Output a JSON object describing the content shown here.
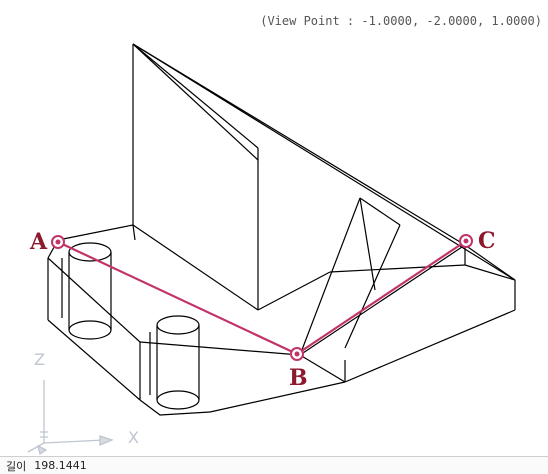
{
  "viewport": {
    "view_point_label": "(View Point : -1.0000, -2.0000, 1.0000)"
  },
  "points": {
    "a": "A",
    "b": "B",
    "c": "C"
  },
  "ucs_icon": {
    "z_label": "Z",
    "x_label": "X"
  },
  "status": {
    "length_label": "길이",
    "length_value": "198.1441"
  },
  "colors": {
    "wire": "#000000",
    "path_line": "#c2336a",
    "point_label": "#8b1a2e",
    "ucs_icon": "#bfc6d0"
  }
}
